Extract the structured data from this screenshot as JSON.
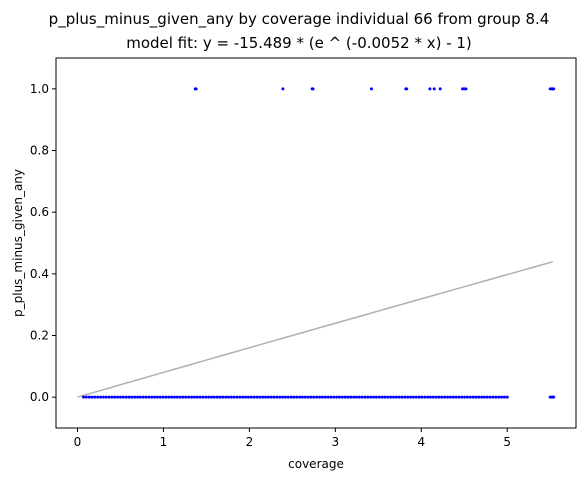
{
  "chart_data": {
    "type": "scatter",
    "title": "p_plus_minus_given_any by coverage individual 66 from group 8.4",
    "subtitle": "model fit: y = -15.489 * (e ^ (-0.0052 * x) - 1)",
    "xlabel": "coverage",
    "ylabel": "p_plus_minus_given_any",
    "xlim": [
      -0.25,
      5.8
    ],
    "ylim": [
      -0.1,
      1.1
    ],
    "xticks": [
      0,
      1,
      2,
      3,
      4,
      5
    ],
    "yticks": [
      0.0,
      0.2,
      0.4,
      0.6,
      0.8,
      1.0
    ],
    "ytick_labels": [
      "0.0",
      "0.2",
      "0.4",
      "0.6",
      "0.8",
      "1.0"
    ],
    "grid": false,
    "point_color": "#0000ff",
    "fit_color": "#b0b0b0",
    "points_at_one": [
      1.37,
      1.38,
      2.39,
      2.73,
      2.74,
      3.42,
      3.82,
      3.83,
      4.1,
      4.15,
      4.22,
      4.48,
      4.5,
      4.52,
      5.5,
      5.52,
      5.53,
      5.54
    ],
    "points_at_zero_range": {
      "from": 0.07,
      "to": 5.0,
      "count": 150
    },
    "points_at_zero_extra": [
      5.5,
      5.52,
      5.53,
      5.54
    ],
    "fit": {
      "a": -15.489,
      "b": -0.0052,
      "x_from": 0.0,
      "x_to": 5.53
    }
  }
}
